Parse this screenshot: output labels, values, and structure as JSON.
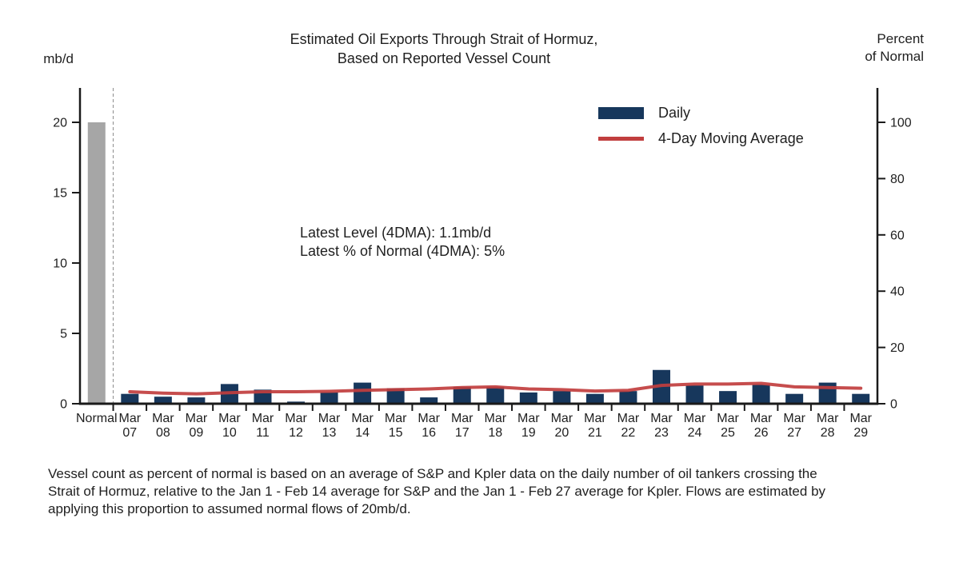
{
  "title": {
    "line1": "Estimated Oil Exports Through Strait of Hormuz,",
    "line2": "Based on Reported Vessel Count"
  },
  "left_axis": {
    "unit": "mb/d"
  },
  "right_axis": {
    "unit_line1": "Percent",
    "unit_line2": "of Normal"
  },
  "legend": {
    "daily_label": "Daily",
    "ma_label": "4-Day Moving Average"
  },
  "annotation": {
    "line1": "Latest Level (4DMA): 1.1mb/d",
    "line2": "Latest % of Normal (4DMA): 5%"
  },
  "footnote": "Vessel count as percent of normal is based on an average of S&P and Kpler data on the daily number of oil tankers crossing the Strait of Hormuz, relative to the Jan 1 - Feb 14 average for S&P and the Jan 1 - Feb 27 average for Kpler. Flows are estimated by applying this proportion to assumed normal flows of 20mb/d.",
  "chart_data": {
    "type": "bar",
    "title": "Estimated Oil Exports Through Strait of Hormuz, Based on Reported Vessel Count",
    "left_ylabel": "mb/d",
    "right_ylabel": "Percent of Normal",
    "left_ylim": [
      0,
      20
    ],
    "right_ylim": [
      0,
      100
    ],
    "left_ticks": [
      0,
      5,
      10,
      15,
      20
    ],
    "right_ticks": [
      0,
      20,
      40,
      60,
      80,
      100
    ],
    "grid": false,
    "legend_position": "upper right",
    "normal_category": "Normal",
    "normal_value": 20,
    "normal_bar_color": "#a6a6a6",
    "separator_style": "dashed vertical line between Normal and Mar 07",
    "categories": [
      "Mar 07",
      "Mar 08",
      "Mar 09",
      "Mar 10",
      "Mar 11",
      "Mar 12",
      "Mar 13",
      "Mar 14",
      "Mar 15",
      "Mar 16",
      "Mar 17",
      "Mar 18",
      "Mar 19",
      "Mar 20",
      "Mar 21",
      "Mar 22",
      "Mar 23",
      "Mar 24",
      "Mar 25",
      "Mar 26",
      "Mar 27",
      "Mar 28",
      "Mar 29"
    ],
    "series": [
      {
        "name": "Daily",
        "type": "bar",
        "axis": "left (mb/d)",
        "color": "#17375c",
        "values": [
          0.7,
          0.5,
          0.45,
          1.4,
          1.0,
          0.15,
          0.8,
          1.5,
          1.1,
          0.45,
          1.2,
          1.2,
          0.8,
          0.9,
          0.7,
          0.9,
          2.4,
          1.3,
          0.9,
          1.35,
          0.7,
          1.5,
          0.7
        ]
      },
      {
        "name": "4-Day Moving Average",
        "type": "line",
        "axis": "left (mb/d)",
        "color": "#c13e3e",
        "values": [
          0.85,
          0.75,
          0.7,
          0.78,
          0.85,
          0.85,
          0.88,
          0.95,
          1.0,
          1.05,
          1.15,
          1.2,
          1.05,
          1.0,
          0.9,
          0.95,
          1.3,
          1.4,
          1.4,
          1.45,
          1.2,
          1.15,
          1.1
        ]
      }
    ],
    "annotations": [
      "Latest Level (4DMA): 1.1mb/d",
      "Latest % of Normal (4DMA): 5%"
    ],
    "latest_level_4dma_mbd": 1.1,
    "latest_percent_of_normal_4dma": 5
  }
}
